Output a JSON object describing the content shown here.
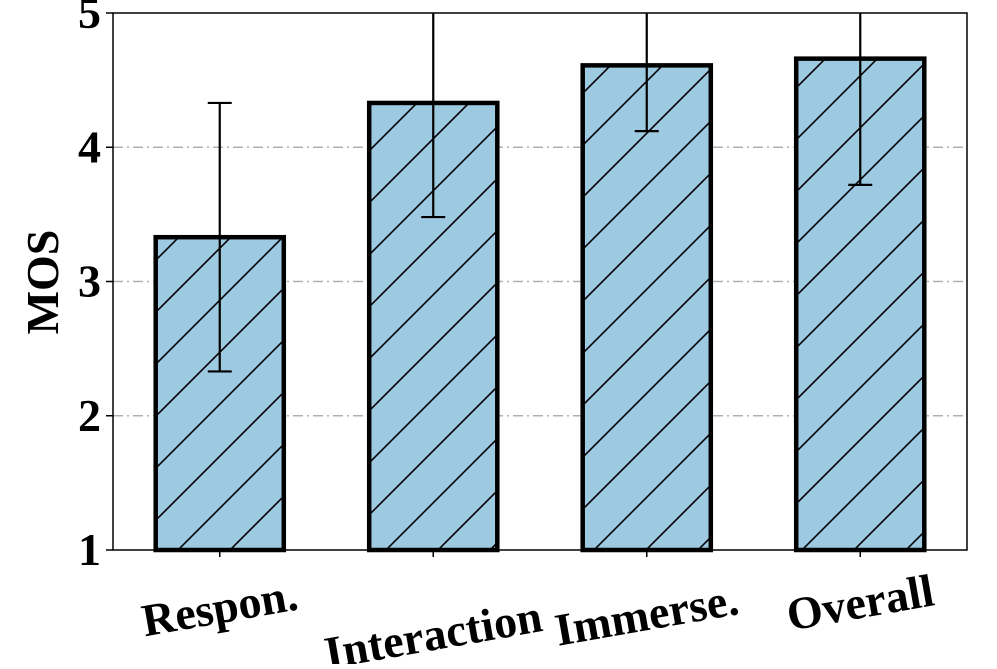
{
  "chart_data": {
    "type": "bar",
    "title": "",
    "xlabel": "",
    "ylabel": "MOS",
    "ylim": [
      1,
      5
    ],
    "yticks": [
      1,
      2,
      3,
      4,
      5
    ],
    "grid": "horizontal dash-dot",
    "categories": [
      "Respon.",
      "Interaction",
      "Immerse.",
      "Overall"
    ],
    "values": [
      3.33,
      4.33,
      4.61,
      4.66
    ],
    "error_lower": [
      2.33,
      3.48,
      4.12,
      3.72
    ],
    "error_upper": [
      4.33,
      5.0,
      5.0,
      5.0
    ],
    "bar_color": "#9ecae1",
    "hatch": "diagonal"
  }
}
